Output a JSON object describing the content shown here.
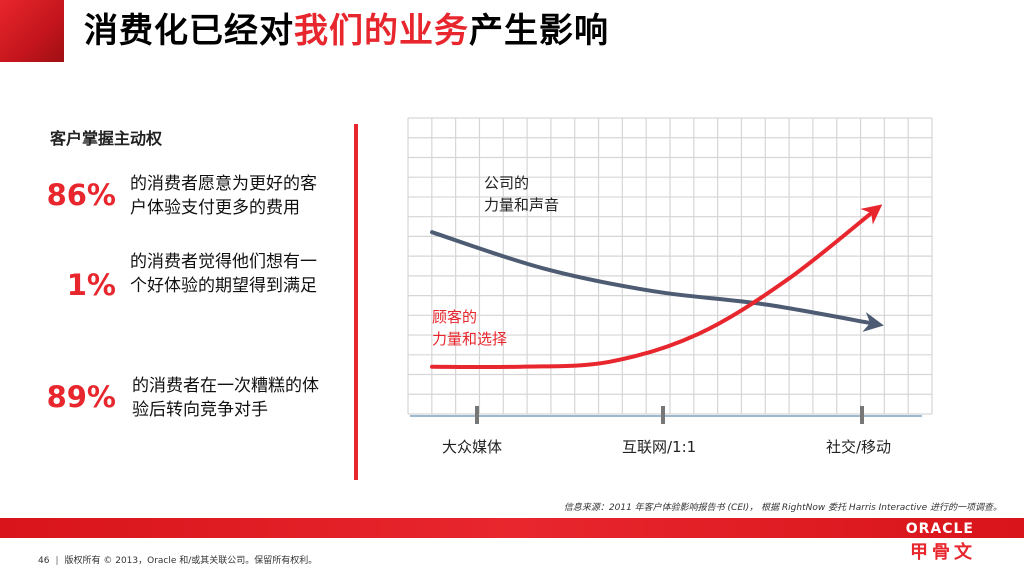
{
  "title": {
    "part1": "消费化已经对",
    "highlight": "我们的业务",
    "part2": "产生影响"
  },
  "left": {
    "subtitle": "客户掌握主动权",
    "stats": [
      {
        "value": "86%",
        "line1": "的消费者愿意为更好的客",
        "line2": "户体验支付更多的费用"
      },
      {
        "value": "1%",
        "line1": "的消费者觉得他们想有一",
        "line2": "个好体验的期望得到满足"
      },
      {
        "value": "89%",
        "line1": "的消费者在一次糟糕的体",
        "line2": "验后转向竞争对手"
      }
    ]
  },
  "chart_data": {
    "type": "line",
    "categories": [
      "大众媒体",
      "互联网/1:1",
      "社交/移动"
    ],
    "series": [
      {
        "name": "公司的力量和声音",
        "color": "#4d5b73",
        "x": [
          0,
          0.25,
          0.5,
          0.75,
          1.0
        ],
        "values": [
          0.84,
          0.62,
          0.48,
          0.4,
          0.28
        ]
      },
      {
        "name": "顾客的力量和选择",
        "color": "#e8262d",
        "x": [
          0,
          0.2,
          0.4,
          0.6,
          0.8,
          1.0
        ],
        "values": [
          0.02,
          0.02,
          0.05,
          0.22,
          0.55,
          0.98
        ]
      }
    ],
    "labels": {
      "company_line1": "公司的",
      "company_line2": "力量和声音",
      "customer_line1": "顾客的",
      "customer_line2": "力量和选择"
    },
    "grid": true
  },
  "source_note": "信息来源：2011 年客户体验影响报告书 (CEI)， 根据 RightNow 委托 Harris Interactive 进行的一项调查。",
  "logo": {
    "en": "ORACLE",
    "zh": "甲骨文"
  },
  "footer": {
    "page": "46",
    "copyright": "版权所有 © 2013，Oracle 和/或其关联公司。保留所有权利。"
  },
  "colors": {
    "accent": "#e8262d",
    "company_line": "#4d5b73",
    "grid": "#d6d6d6"
  }
}
